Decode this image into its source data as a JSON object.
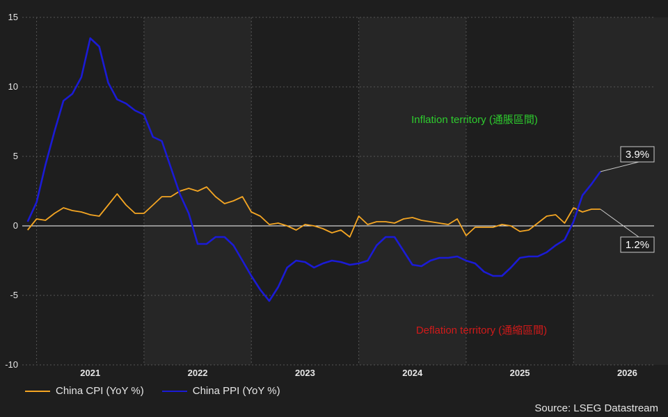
{
  "chart_data": {
    "type": "line",
    "title": "",
    "xlabel": "",
    "ylabel": "",
    "ylim": [
      -10,
      15
    ],
    "yticks": [
      -10,
      -5,
      0,
      5,
      10,
      15
    ],
    "x_tick_labels": [
      "2021",
      "2022",
      "2023",
      "2024",
      "2025",
      "2026"
    ],
    "grid": true,
    "legend_position": "bottom-left",
    "x_start": "2021-01",
    "series": [
      {
        "name": "China CPI (YoY %)",
        "color": "#f5a623",
        "values": [
          -0.3,
          0.5,
          0.4,
          0.9,
          1.3,
          1.1,
          1.0,
          0.8,
          0.7,
          1.5,
          2.3,
          1.5,
          0.9,
          0.9,
          1.5,
          2.1,
          2.1,
          2.5,
          2.7,
          2.5,
          2.8,
          2.1,
          1.6,
          1.8,
          2.1,
          1.0,
          0.7,
          0.1,
          0.2,
          0.0,
          -0.3,
          0.1,
          0.0,
          -0.2,
          -0.5,
          -0.3,
          -0.8,
          0.7,
          0.1,
          0.3,
          0.3,
          0.2,
          0.5,
          0.6,
          0.4,
          0.3,
          0.2,
          0.1,
          0.5,
          -0.7,
          -0.1,
          -0.1,
          -0.1,
          0.1,
          0.0,
          -0.4,
          -0.3,
          0.2,
          0.7,
          0.8,
          0.2,
          1.3,
          1.0,
          1.2,
          1.2
        ]
      },
      {
        "name": "China PPI (YoY %)",
        "color": "#1b1bd6",
        "values": [
          0.3,
          1.7,
          4.4,
          6.8,
          9.0,
          9.5,
          10.7,
          13.5,
          12.9,
          10.3,
          9.1,
          8.8,
          8.3,
          8.0,
          6.4,
          6.1,
          4.2,
          2.3,
          0.9,
          -1.3,
          -1.3,
          -0.8,
          -0.8,
          -1.4,
          -2.5,
          -3.6,
          -4.6,
          -5.4,
          -4.4,
          -3.0,
          -2.5,
          -2.6,
          -3.0,
          -2.7,
          -2.5,
          -2.6,
          -2.8,
          -2.7,
          -2.5,
          -1.4,
          -0.8,
          -0.8,
          -1.8,
          -2.8,
          -2.9,
          -2.5,
          -2.3,
          -2.3,
          -2.2,
          -2.5,
          -2.7,
          -3.3,
          -3.6,
          -3.6,
          -3.0,
          -2.3,
          -2.2,
          -2.2,
          -1.9,
          -1.4,
          -1.0,
          0.3,
          2.2,
          3.0,
          3.9
        ]
      }
    ],
    "annotations": {
      "inflation": "Inflation territory (通脹區間)",
      "deflation": "Deflation territory (通縮區間)",
      "ppi_last": "3.9%",
      "cpi_last": "1.2%",
      "inflation_color": "#2ecc2e",
      "deflation_color": "#d21a1a"
    }
  },
  "legend": {
    "cpi": "China CPI (YoY %)",
    "ppi": "China PPI (YoY %)"
  },
  "source": "Source: LSEG Datastream"
}
